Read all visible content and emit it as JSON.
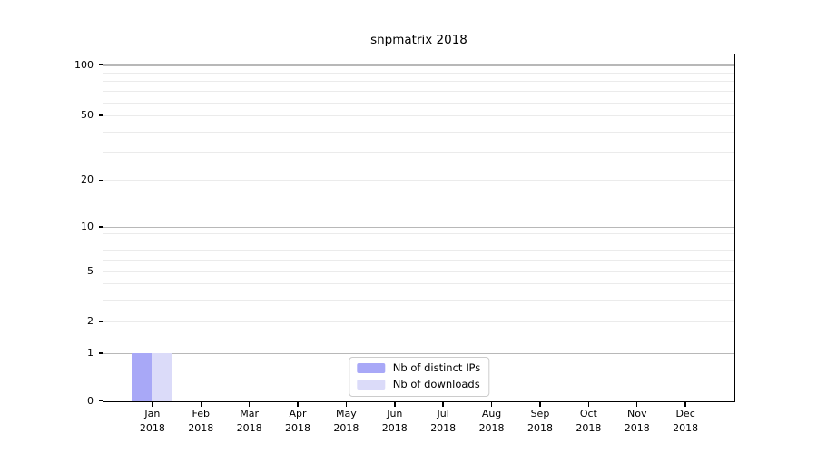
{
  "chart_data": {
    "type": "bar",
    "title": "snpmatrix 2018",
    "categories": [
      {
        "month": "Jan",
        "year": "2018"
      },
      {
        "month": "Feb",
        "year": "2018"
      },
      {
        "month": "Mar",
        "year": "2018"
      },
      {
        "month": "Apr",
        "year": "2018"
      },
      {
        "month": "May",
        "year": "2018"
      },
      {
        "month": "Jun",
        "year": "2018"
      },
      {
        "month": "Jul",
        "year": "2018"
      },
      {
        "month": "Aug",
        "year": "2018"
      },
      {
        "month": "Sep",
        "year": "2018"
      },
      {
        "month": "Oct",
        "year": "2018"
      },
      {
        "month": "Nov",
        "year": "2018"
      },
      {
        "month": "Dec",
        "year": "2018"
      }
    ],
    "series": [
      {
        "name": "Nb of distinct IPs",
        "color": "#a8a8f7",
        "values": [
          1,
          0,
          0,
          0,
          0,
          0,
          0,
          0,
          0,
          0,
          0,
          0
        ]
      },
      {
        "name": "Nb of downloads",
        "color": "#dbdbf9",
        "values": [
          1,
          0,
          0,
          0,
          0,
          0,
          0,
          0,
          0,
          0,
          0,
          0
        ]
      }
    ],
    "y_axis": {
      "scale": "log-like (linear 0-1, logarithmic above)",
      "ticks": [
        {
          "value": 0,
          "label": "0",
          "pos": 0.0
        },
        {
          "value": 1,
          "label": "1",
          "pos": 0.138
        },
        {
          "value": 2,
          "label": "2",
          "pos": 0.229
        },
        {
          "value": 5,
          "label": "5",
          "pos": 0.375
        },
        {
          "value": 10,
          "label": "10",
          "pos": 0.503
        },
        {
          "value": 20,
          "label": "20",
          "pos": 0.638
        },
        {
          "value": 50,
          "label": "50",
          "pos": 0.825
        },
        {
          "value": 100,
          "label": "100",
          "pos": 0.971
        }
      ],
      "major_grid_values": [
        1,
        10,
        100
      ],
      "minor_grid_values": [
        2,
        3,
        4,
        5,
        6,
        7,
        8,
        9,
        20,
        30,
        40,
        50,
        60,
        70,
        80,
        90
      ]
    },
    "grid": {
      "visible": true,
      "orientation": "horizontal",
      "major_color": "#b8b8b8",
      "minor_color": "#ebebeb"
    },
    "legend": {
      "position": "lower center"
    }
  }
}
